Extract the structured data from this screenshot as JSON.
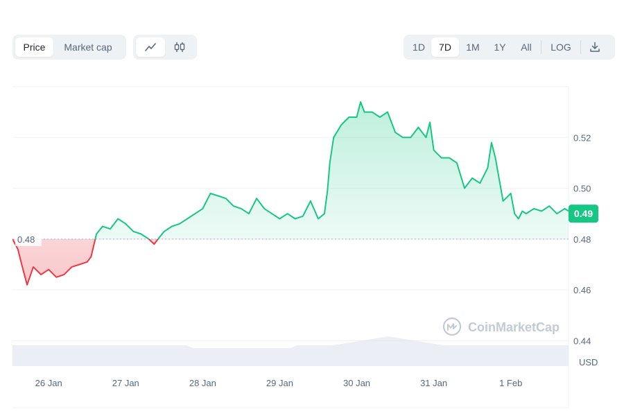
{
  "toolbar": {
    "metric_tabs": [
      {
        "label": "Price",
        "active": true
      },
      {
        "label": "Market cap",
        "active": false
      }
    ],
    "view_icons": [
      {
        "icon": "line-chart-icon",
        "active": true
      },
      {
        "icon": "candlestick-icon",
        "active": false
      }
    ],
    "range_tabs": [
      {
        "label": "1D",
        "active": false
      },
      {
        "label": "7D",
        "active": true
      },
      {
        "label": "1M",
        "active": false
      },
      {
        "label": "1Y",
        "active": false
      },
      {
        "label": "All",
        "active": false
      }
    ],
    "log_label": "LOG",
    "download_icon": "download-icon"
  },
  "watermark": "CoinMarketCap",
  "colors": {
    "up": "#16c784",
    "down": "#ea3943",
    "grid": "#eff2f5",
    "text": "#58667e"
  },
  "chart_data": {
    "type": "line",
    "y_unit": "USD",
    "y_ticks": [
      0.44,
      0.46,
      0.48,
      0.5,
      0.52
    ],
    "y_tick_labels": [
      "0.44",
      "0.46",
      "0.48",
      "0.50",
      "0.52"
    ],
    "ylim": [
      0.43,
      0.54
    ],
    "x_tick_labels": [
      "26 Jan",
      "27 Jan",
      "28 Jan",
      "29 Jan",
      "30 Jan",
      "31 Jan",
      "1 Feb"
    ],
    "xlim": [
      -0.47,
      6.75
    ],
    "reference_price": 0.48,
    "reference_label": "0.48",
    "current_price": 0.49,
    "current_label": "0.49",
    "grid": true,
    "series": [
      {
        "x": [
          -0.47,
          -0.4,
          -0.35,
          -0.28,
          -0.2,
          -0.1,
          0.0,
          0.1,
          0.2,
          0.3,
          0.4,
          0.5,
          0.55,
          0.62,
          0.7,
          0.8,
          0.9,
          1.0,
          1.1,
          1.2,
          1.3,
          1.37,
          1.42,
          1.5,
          1.6,
          1.7,
          1.8,
          1.9,
          2.0,
          2.1,
          2.2,
          2.3,
          2.4,
          2.5,
          2.6,
          2.7,
          2.8,
          2.9,
          3.0,
          3.1,
          3.2,
          3.3,
          3.4,
          3.5,
          3.58,
          3.62,
          3.65,
          3.7,
          3.8,
          3.9,
          4.0,
          4.05,
          4.1,
          4.2,
          4.3,
          4.4,
          4.5,
          4.6,
          4.7,
          4.8,
          4.9,
          4.95,
          5.0,
          5.1,
          5.2,
          5.3,
          5.4,
          5.5,
          5.6,
          5.7,
          5.75,
          5.8,
          5.9,
          6.0,
          6.05,
          6.1,
          6.15,
          6.2,
          6.3,
          6.4,
          6.5,
          6.6,
          6.7,
          6.75
        ],
        "y": [
          0.48,
          0.476,
          0.47,
          0.462,
          0.469,
          0.466,
          0.468,
          0.465,
          0.466,
          0.469,
          0.47,
          0.471,
          0.473,
          0.482,
          0.485,
          0.484,
          0.488,
          0.486,
          0.483,
          0.482,
          0.48,
          0.478,
          0.48,
          0.483,
          0.485,
          0.486,
          0.488,
          0.49,
          0.492,
          0.498,
          0.497,
          0.496,
          0.493,
          0.492,
          0.49,
          0.496,
          0.492,
          0.49,
          0.488,
          0.49,
          0.488,
          0.489,
          0.495,
          0.488,
          0.49,
          0.499,
          0.51,
          0.52,
          0.525,
          0.528,
          0.528,
          0.534,
          0.53,
          0.53,
          0.528,
          0.53,
          0.522,
          0.52,
          0.52,
          0.524,
          0.52,
          0.526,
          0.515,
          0.512,
          0.512,
          0.51,
          0.5,
          0.504,
          0.502,
          0.508,
          0.518,
          0.512,
          0.495,
          0.498,
          0.49,
          0.488,
          0.491,
          0.49,
          0.492,
          0.491,
          0.493,
          0.49,
          0.492,
          0.491
        ]
      }
    ]
  }
}
